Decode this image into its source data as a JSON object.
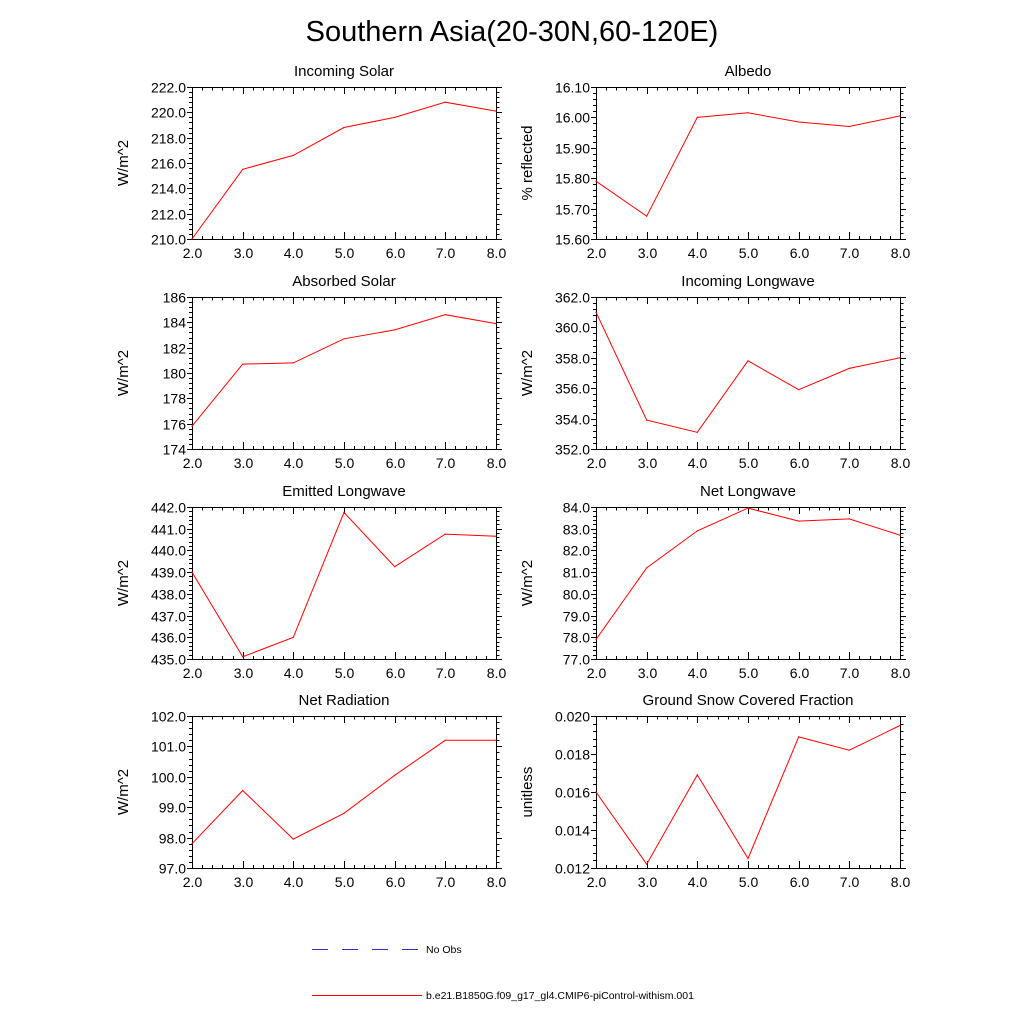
{
  "figure": {
    "title": "Southern Asia(20-30N,60-120E)",
    "legend": [
      {
        "label": "No Obs",
        "color": "#3333cc",
        "style": "dashed"
      },
      {
        "label": "b.e21.B1850G.f09_g17_gl4.CMIP6-piControl-withism.001",
        "color": "#ff0000",
        "style": "solid"
      }
    ]
  },
  "chart_data": [
    {
      "type": "line",
      "title": "Incoming Solar",
      "xlabel": "",
      "ylabel": "W/m^2",
      "xlim": [
        2,
        8
      ],
      "ylim": [
        210,
        222
      ],
      "xticks": [
        2,
        3,
        4,
        5,
        6,
        7,
        8
      ],
      "xtick_labels": [
        "2.0",
        "3.0",
        "4.0",
        "5.0",
        "6.0",
        "7.0",
        "8.0"
      ],
      "yticks": [
        210,
        212,
        214,
        216,
        218,
        220,
        222
      ],
      "ytick_labels": [
        "210.0",
        "212.0",
        "214.0",
        "216.0",
        "218.0",
        "220.0",
        "222.0"
      ],
      "yminor_step": 0.4,
      "x": [
        2,
        3,
        4,
        5,
        6,
        7,
        8
      ],
      "series": [
        {
          "name": "b.e21.B1850G.f09_g17_gl4.CMIP6-piControl-withism.001",
          "color": "#ff0000",
          "values": [
            210.0,
            215.5,
            216.6,
            218.8,
            219.6,
            220.8,
            220.1
          ]
        }
      ]
    },
    {
      "type": "line",
      "title": "Albedo",
      "xlabel": "",
      "ylabel": "% reflected",
      "xlim": [
        2,
        8
      ],
      "ylim": [
        15.6,
        16.1
      ],
      "xticks": [
        2,
        3,
        4,
        5,
        6,
        7,
        8
      ],
      "xtick_labels": [
        "2.0",
        "3.0",
        "4.0",
        "5.0",
        "6.0",
        "7.0",
        "8.0"
      ],
      "yticks": [
        15.6,
        15.7,
        15.8,
        15.9,
        16.0,
        16.1
      ],
      "ytick_labels": [
        "15.60",
        "15.70",
        "15.80",
        "15.90",
        "16.00",
        "16.10"
      ],
      "yminor_step": 0.02,
      "x": [
        2,
        3,
        4,
        5,
        6,
        7,
        8
      ],
      "series": [
        {
          "name": "b.e21.B1850G.f09_g17_gl4.CMIP6-piControl-withism.001",
          "color": "#ff0000",
          "values": [
            15.79,
            15.675,
            16.0,
            16.015,
            15.985,
            15.97,
            16.005
          ]
        }
      ]
    },
    {
      "type": "line",
      "title": "Absorbed Solar",
      "xlabel": "",
      "ylabel": "W/m^2",
      "xlim": [
        2,
        8
      ],
      "ylim": [
        174,
        186
      ],
      "xticks": [
        2,
        3,
        4,
        5,
        6,
        7,
        8
      ],
      "xtick_labels": [
        "2.0",
        "3.0",
        "4.0",
        "5.0",
        "6.0",
        "7.0",
        "8.0"
      ],
      "yticks": [
        174,
        176,
        178,
        180,
        182,
        184,
        186
      ],
      "ytick_labels": [
        "174",
        "176",
        "178",
        "180",
        "182",
        "184",
        "186"
      ],
      "yminor_step": 0.4,
      "x": [
        2,
        3,
        4,
        5,
        6,
        7,
        8
      ],
      "series": [
        {
          "name": "b.e21.B1850G.f09_g17_gl4.CMIP6-piControl-withism.001",
          "color": "#ff0000",
          "values": [
            175.8,
            180.7,
            180.8,
            182.7,
            183.4,
            184.6,
            183.9
          ]
        }
      ]
    },
    {
      "type": "line",
      "title": "Incoming Longwave",
      "xlabel": "",
      "ylabel": "W/m^2",
      "xlim": [
        2,
        8
      ],
      "ylim": [
        352,
        362
      ],
      "xticks": [
        2,
        3,
        4,
        5,
        6,
        7,
        8
      ],
      "xtick_labels": [
        "2.0",
        "3.0",
        "4.0",
        "5.0",
        "6.0",
        "7.0",
        "8.0"
      ],
      "yticks": [
        352,
        354,
        356,
        358,
        360,
        362
      ],
      "ytick_labels": [
        "352.0",
        "354.0",
        "356.0",
        "358.0",
        "360.0",
        "362.0"
      ],
      "yminor_step": 0.4,
      "x": [
        2,
        3,
        4,
        5,
        6,
        7,
        8
      ],
      "series": [
        {
          "name": "b.e21.B1850G.f09_g17_gl4.CMIP6-piControl-withism.001",
          "color": "#ff0000",
          "values": [
            361.0,
            353.9,
            353.1,
            357.8,
            355.9,
            357.3,
            358.0
          ]
        }
      ]
    },
    {
      "type": "line",
      "title": "Emitted Longwave",
      "xlabel": "",
      "ylabel": "W/m^2",
      "xlim": [
        2,
        8
      ],
      "ylim": [
        435,
        442
      ],
      "xticks": [
        2,
        3,
        4,
        5,
        6,
        7,
        8
      ],
      "xtick_labels": [
        "2.0",
        "3.0",
        "4.0",
        "5.0",
        "6.0",
        "7.0",
        "8.0"
      ],
      "yticks": [
        435,
        436,
        437,
        438,
        439,
        440,
        441,
        442
      ],
      "ytick_labels": [
        "435.0",
        "436.0",
        "437.0",
        "438.0",
        "439.0",
        "440.0",
        "441.0",
        "442.0"
      ],
      "yminor_step": 0.2,
      "x": [
        2,
        3,
        4,
        5,
        6,
        7,
        8
      ],
      "series": [
        {
          "name": "b.e21.B1850G.f09_g17_gl4.CMIP6-piControl-withism.001",
          "color": "#ff0000",
          "values": [
            439.0,
            435.1,
            436.0,
            441.75,
            439.25,
            440.75,
            440.65
          ]
        }
      ]
    },
    {
      "type": "line",
      "title": "Net Longwave",
      "xlabel": "",
      "ylabel": "W/m^2",
      "xlim": [
        2,
        8
      ],
      "ylim": [
        77,
        84
      ],
      "xticks": [
        2,
        3,
        4,
        5,
        6,
        7,
        8
      ],
      "xtick_labels": [
        "2.0",
        "3.0",
        "4.0",
        "5.0",
        "6.0",
        "7.0",
        "8.0"
      ],
      "yticks": [
        77,
        78,
        79,
        80,
        81,
        82,
        83,
        84
      ],
      "ytick_labels": [
        "77.0",
        "78.0",
        "79.0",
        "80.0",
        "81.0",
        "82.0",
        "83.0",
        "84.0"
      ],
      "yminor_step": 0.2,
      "x": [
        2,
        3,
        4,
        5,
        6,
        7,
        8
      ],
      "series": [
        {
          "name": "b.e21.B1850G.f09_g17_gl4.CMIP6-piControl-withism.001",
          "color": "#ff0000",
          "values": [
            77.9,
            81.2,
            82.9,
            83.95,
            83.35,
            83.45,
            82.7
          ]
        }
      ]
    },
    {
      "type": "line",
      "title": "Net Radiation",
      "xlabel": "",
      "ylabel": "W/m^2",
      "xlim": [
        2,
        8
      ],
      "ylim": [
        97,
        102
      ],
      "xticks": [
        2,
        3,
        4,
        5,
        6,
        7,
        8
      ],
      "xtick_labels": [
        "2.0",
        "3.0",
        "4.0",
        "5.0",
        "6.0",
        "7.0",
        "8.0"
      ],
      "yticks": [
        97,
        98,
        99,
        100,
        101,
        102
      ],
      "ytick_labels": [
        "97.0",
        "98.0",
        "99.0",
        "100.0",
        "101.0",
        "102.0"
      ],
      "yminor_step": 0.2,
      "x": [
        2,
        3,
        4,
        5,
        6,
        7,
        8
      ],
      "series": [
        {
          "name": "b.e21.B1850G.f09_g17_gl4.CMIP6-piControl-withism.001",
          "color": "#ff0000",
          "values": [
            97.8,
            99.55,
            97.95,
            98.8,
            100.05,
            101.2,
            101.2
          ]
        }
      ]
    },
    {
      "type": "line",
      "title": "Ground Snow Covered Fraction",
      "xlabel": "",
      "ylabel": "unitless",
      "xlim": [
        2,
        8
      ],
      "ylim": [
        0.012,
        0.02
      ],
      "xticks": [
        2,
        3,
        4,
        5,
        6,
        7,
        8
      ],
      "xtick_labels": [
        "2.0",
        "3.0",
        "4.0",
        "5.0",
        "6.0",
        "7.0",
        "8.0"
      ],
      "yticks": [
        0.012,
        0.014,
        0.016,
        0.018,
        0.02
      ],
      "ytick_labels": [
        "0.012",
        "0.014",
        "0.016",
        "0.018",
        "0.020"
      ],
      "yminor_step": 0.0004,
      "x": [
        2,
        3,
        4,
        5,
        6,
        7,
        8
      ],
      "series": [
        {
          "name": "b.e21.B1850G.f09_g17_gl4.CMIP6-piControl-withism.001",
          "color": "#ff0000",
          "values": [
            0.016,
            0.0122,
            0.0169,
            0.0125,
            0.0189,
            0.0182,
            0.0195
          ]
        }
      ]
    }
  ]
}
